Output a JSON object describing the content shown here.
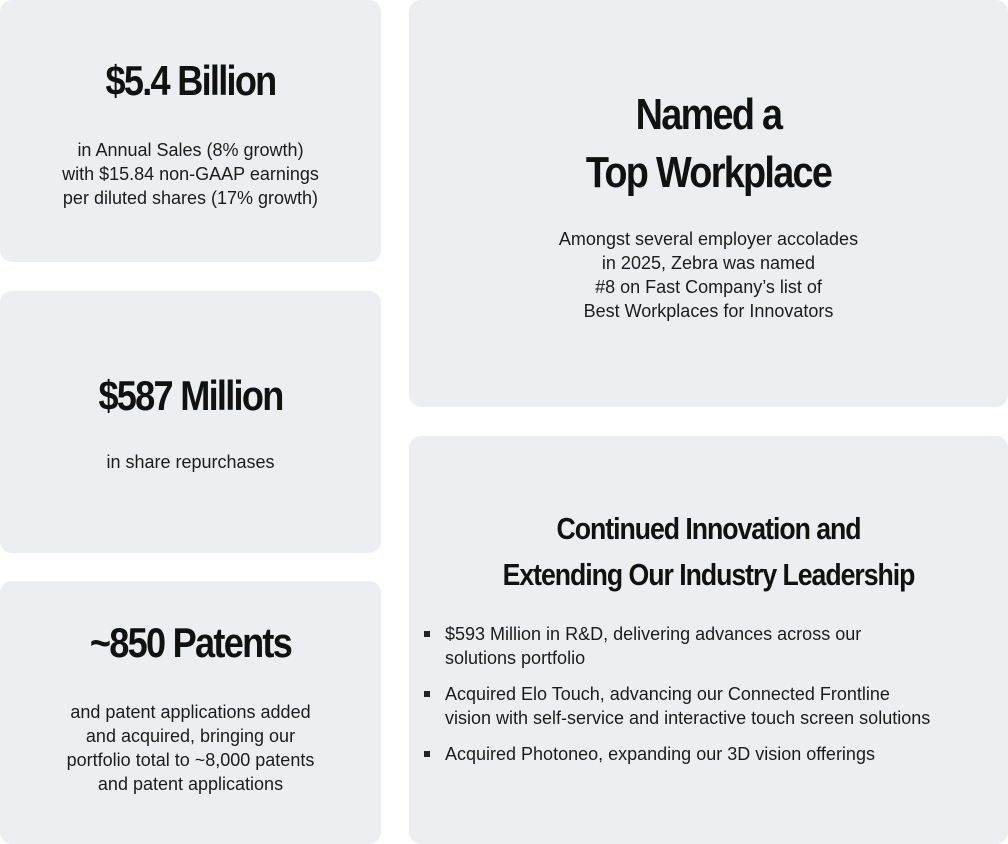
{
  "sales": {
    "headline": "$5.4 Billion",
    "lines": [
      "in Annual Sales (8% growth)",
      "with $15.84 non-GAAP earnings",
      "per diluted shares (17% growth)"
    ]
  },
  "repurchase": {
    "headline": "$587 Million",
    "lines": [
      "in share repurchases"
    ]
  },
  "patents": {
    "headline": "~850 Patents",
    "lines": [
      "and patent applications added",
      "and acquired, bringing our",
      "portfolio total to ~8,000 patents",
      "and patent applications"
    ]
  },
  "workplace": {
    "headline_lines": [
      "Named a",
      "Top Workplace"
    ],
    "lines": [
      "Amongst several employer accolades",
      "in 2025, Zebra was named",
      "#8 on Fast Company’s list of",
      "Best Workplaces for Innovators"
    ]
  },
  "innovation": {
    "headline_lines": [
      "Continued Innovation and",
      "Extending Our Industry Leadership"
    ],
    "bullets": [
      [
        "$593 Million in R&D, delivering advances across our",
        "solutions portfolio"
      ],
      [
        "Acquired Elo Touch, advancing our Connected Frontline",
        "vision with self-service and interactive touch screen solutions"
      ],
      [
        "Acquired Photoneo, expanding our 3D vision offerings"
      ]
    ]
  }
}
